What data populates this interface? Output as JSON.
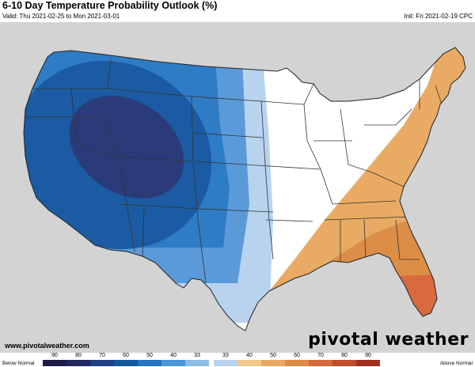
{
  "header": {
    "title": "6-10 Day Temperature Probability Outlook (%)",
    "valid": "Valid: Thu 2021-02-25 to Mon 2021-03-01",
    "init": "Init: Fri 2021-02-19 CPC"
  },
  "footer": {
    "website": "www.pivotalweather.com",
    "logo": "pivotal weather"
  },
  "legend": {
    "left_label": "Below Normal",
    "right_label": "Above Normal",
    "ticks": [
      "90",
      "80",
      "70",
      "60",
      "50",
      "40",
      "33",
      "33",
      "40",
      "50",
      "60",
      "70",
      "80",
      "90"
    ],
    "colors": [
      "#1c1b4a",
      "#23265f",
      "#1f3f86",
      "#13599e",
      "#2774c2",
      "#4b95d8",
      "#8dbce6",
      "#b8d3ee",
      "#f2c88c",
      "#e8a863",
      "#df8b45",
      "#d66a3a",
      "#c54b2d",
      "#a33021"
    ]
  },
  "map_colors": {
    "below_90": "#1c1b4a",
    "below_80": "#23265f",
    "below_70": "#2b3b7a",
    "below_60": "#1a5ba3",
    "below_50": "#2f7cc6",
    "below_40": "#5b9ad9",
    "below_33": "#8dbce6",
    "below_light": "#b8d3ee",
    "above_40": "#e9ab63",
    "above_50": "#dd8e46",
    "above_60": "#d86a3e",
    "land": "#ffffff",
    "outside": "#d3d3d3",
    "water": "#d3d3d3"
  }
}
